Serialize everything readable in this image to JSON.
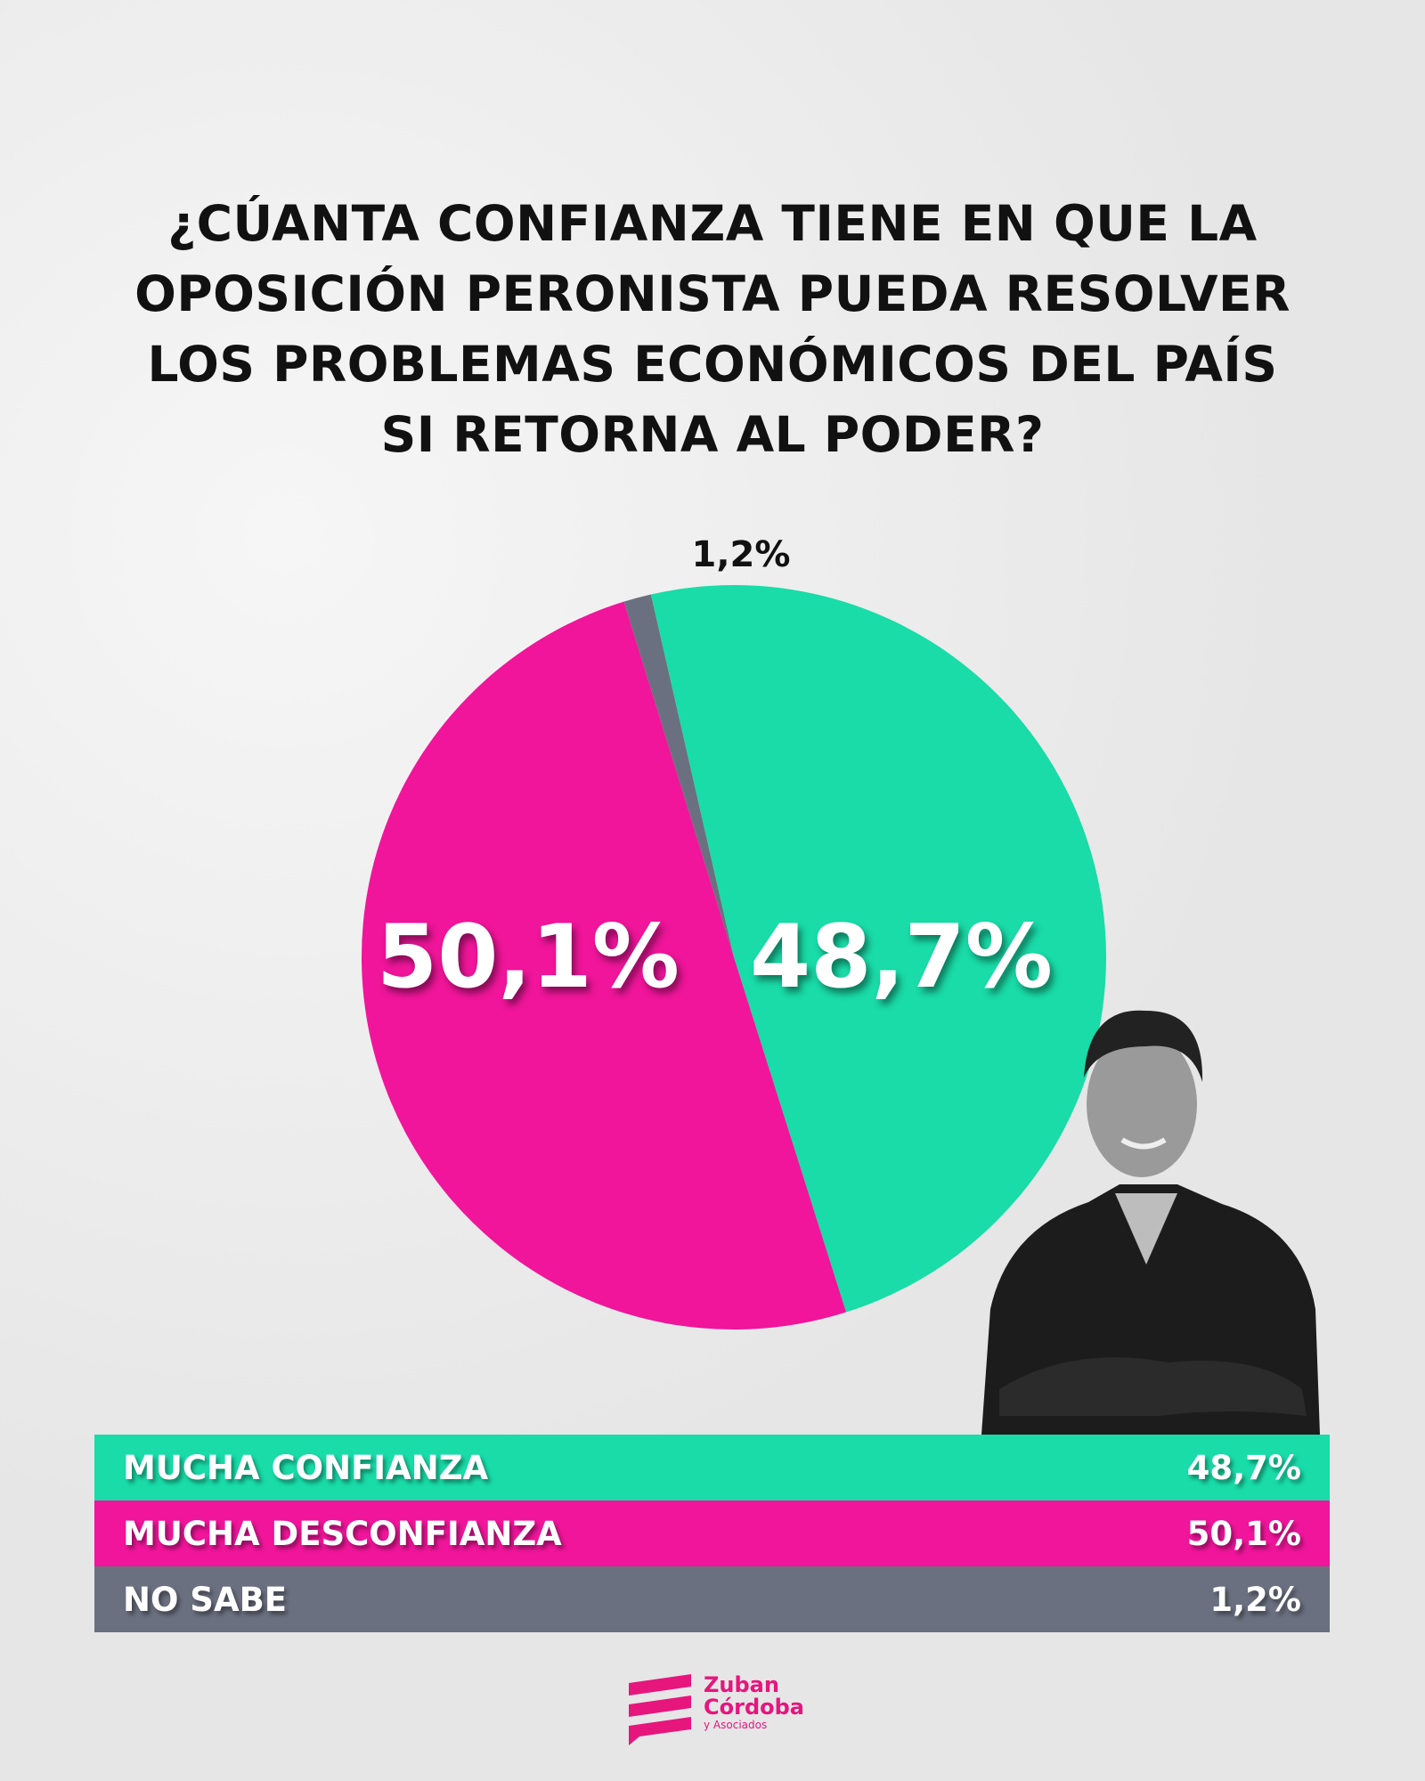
{
  "chart_data": {
    "type": "pie",
    "title": "¿CÚANTA CONFIANZA TIENE EN QUE LA OPOSICIÓN PERONISTA PUEDA RESOLVER LOS PROBLEMAS ECONÓMICOS DEL PAÍS SI RETORNA AL PODER?",
    "title_lines": [
      "¿CÚANTA CONFIANZA TIENE EN QUE LA",
      "OPOSICIÓN PERONISTA PUEDA RESOLVER",
      "LOS PROBLEMAS ECONÓMICOS DEL PAÍS",
      "SI RETORNA AL PODER?"
    ],
    "slices": [
      {
        "name": "NO SABE",
        "value": 1.2,
        "label": "1,2%",
        "color": "#6b7080"
      },
      {
        "name": "MUCHA CONFIANZA",
        "value": 48.7,
        "label": "48,7%",
        "color": "#19dca8"
      },
      {
        "name": "MUCHA DESCONFIANZA",
        "value": 50.1,
        "label": "50,1%",
        "color": "#f0159a"
      }
    ],
    "legend": [
      {
        "label": "MUCHA CONFIANZA",
        "value": "48,7%",
        "color": "#19dca8"
      },
      {
        "label": "MUCHA DESCONFIANZA",
        "value": "50,1%",
        "color": "#f0159a"
      },
      {
        "label": "NO SABE",
        "value": "1,2%",
        "color": "#6b7080"
      }
    ],
    "legend_position": "bottom"
  },
  "logo": {
    "line1": "Zuban",
    "line2": "Córdoba",
    "line3": "y Asociados",
    "color": "#e6167d"
  }
}
